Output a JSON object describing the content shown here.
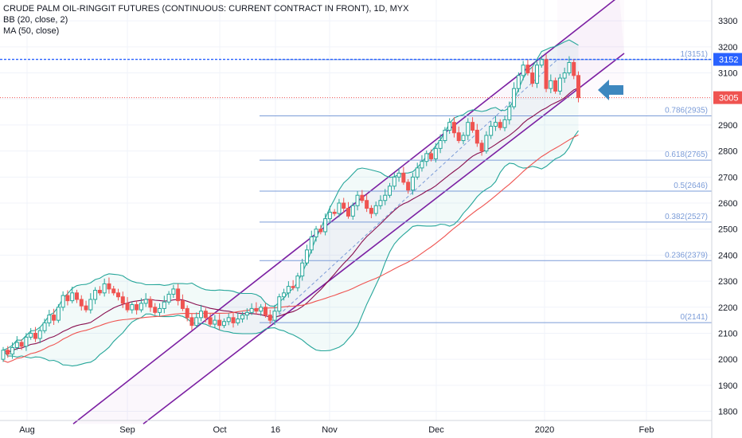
{
  "legend": {
    "title": "CRUDE PALM OIL-RINGGIT FUTURES (CONTINUOUS: CURRENT CONTRACT IN FRONT), 1D, MYX",
    "bb": "BB (20, close, 2)",
    "ma": "MA (50, close)"
  },
  "chart_data": {
    "type": "candlestick",
    "y_axis": {
      "ticks": [
        1800,
        1900,
        2000,
        2100,
        2200,
        2300,
        2400,
        2500,
        2600,
        2700,
        2800,
        2900,
        3000,
        3100,
        3200,
        3300
      ],
      "range": [
        1765,
        3380
      ],
      "position": "right"
    },
    "x_axis": {
      "labels": [
        "Aug",
        "Sep",
        "Oct",
        "16",
        "Nov",
        "Dec",
        "2020",
        "Feb"
      ]
    },
    "price_labels": [
      {
        "text": "3152",
        "value": 3152,
        "color": "#2962ff"
      },
      {
        "text": "3005",
        "value": 3005,
        "color": "#ef5350"
      }
    ],
    "fibonacci": [
      {
        "label": "1(3151)",
        "value": 3151
      },
      {
        "label": "0.786(2935)",
        "value": 2935
      },
      {
        "label": "0.618(2765)",
        "value": 2765
      },
      {
        "label": "0.5(2646)",
        "value": 2646
      },
      {
        "label": "0.382(2527)",
        "value": 2527
      },
      {
        "label": "0.236(2379)",
        "value": 2379
      },
      {
        "label": "0(2141)",
        "value": 2141
      }
    ],
    "colors": {
      "up": "#26a69a",
      "down": "#ef5350",
      "bb": "#26a69a",
      "ma": "#ef5350",
      "basis": "#880e4f",
      "channel": "#7b1fa2",
      "fib": "#7b9cd8",
      "arrow": "#3d87bf"
    },
    "candles": [
      [
        2000,
        2035
      ],
      [
        2035,
        2020
      ],
      [
        2020,
        2045
      ],
      [
        2045,
        2065
      ],
      [
        2065,
        2050
      ],
      [
        2050,
        2085
      ],
      [
        2085,
        2100
      ],
      [
        2100,
        2080
      ],
      [
        2080,
        2110
      ],
      [
        2110,
        2140
      ],
      [
        2140,
        2170
      ],
      [
        2170,
        2150
      ],
      [
        2150,
        2200
      ],
      [
        2200,
        2245
      ],
      [
        2245,
        2225
      ],
      [
        2225,
        2255
      ],
      [
        2255,
        2230
      ],
      [
        2230,
        2205
      ],
      [
        2205,
        2190
      ],
      [
        2190,
        2230
      ],
      [
        2230,
        2265
      ],
      [
        2265,
        2255
      ],
      [
        2255,
        2290
      ],
      [
        2290,
        2270
      ],
      [
        2270,
        2255
      ],
      [
        2255,
        2240
      ],
      [
        2240,
        2215
      ],
      [
        2215,
        2190
      ],
      [
        2190,
        2210
      ],
      [
        2210,
        2190
      ],
      [
        2190,
        2215
      ],
      [
        2215,
        2230
      ],
      [
        2230,
        2200
      ],
      [
        2200,
        2180
      ],
      [
        2180,
        2195
      ],
      [
        2195,
        2220
      ],
      [
        2220,
        2250
      ],
      [
        2250,
        2270
      ],
      [
        2270,
        2225
      ],
      [
        2225,
        2195
      ],
      [
        2195,
        2160
      ],
      [
        2160,
        2130
      ],
      [
        2130,
        2160
      ],
      [
        2160,
        2185
      ],
      [
        2185,
        2160
      ],
      [
        2160,
        2135
      ],
      [
        2135,
        2150
      ],
      [
        2150,
        2130
      ],
      [
        2130,
        2145
      ],
      [
        2145,
        2160
      ],
      [
        2160,
        2140
      ],
      [
        2140,
        2155
      ],
      [
        2155,
        2170
      ],
      [
        2170,
        2180
      ],
      [
        2180,
        2195
      ],
      [
        2195,
        2185
      ],
      [
        2185,
        2200
      ],
      [
        2200,
        2170
      ],
      [
        2170,
        2150
      ],
      [
        2150,
        2185
      ],
      [
        2185,
        2240
      ],
      [
        2240,
        2255
      ],
      [
        2255,
        2280
      ],
      [
        2280,
        2275
      ],
      [
        2275,
        2320
      ],
      [
        2320,
        2370
      ],
      [
        2370,
        2420
      ],
      [
        2420,
        2470
      ],
      [
        2470,
        2500
      ],
      [
        2500,
        2490
      ],
      [
        2490,
        2540
      ],
      [
        2540,
        2565
      ],
      [
        2565,
        2560
      ],
      [
        2560,
        2600
      ],
      [
        2600,
        2580
      ],
      [
        2580,
        2550
      ],
      [
        2550,
        2590
      ],
      [
        2590,
        2630
      ],
      [
        2630,
        2610
      ],
      [
        2610,
        2580
      ],
      [
        2580,
        2560
      ],
      [
        2560,
        2590
      ],
      [
        2590,
        2610
      ],
      [
        2610,
        2630
      ],
      [
        2630,
        2665
      ],
      [
        2665,
        2700
      ],
      [
        2700,
        2715
      ],
      [
        2715,
        2680
      ],
      [
        2680,
        2650
      ],
      [
        2650,
        2700
      ],
      [
        2700,
        2735
      ],
      [
        2735,
        2760
      ],
      [
        2760,
        2790
      ],
      [
        2790,
        2770
      ],
      [
        2770,
        2810
      ],
      [
        2810,
        2840
      ],
      [
        2840,
        2880
      ],
      [
        2880,
        2910
      ],
      [
        2910,
        2870
      ],
      [
        2870,
        2840
      ],
      [
        2840,
        2860
      ],
      [
        2860,
        2910
      ],
      [
        2910,
        2880
      ],
      [
        2880,
        2830
      ],
      [
        2830,
        2800
      ],
      [
        2800,
        2860
      ],
      [
        2860,
        2895
      ],
      [
        2895,
        2910
      ],
      [
        2910,
        2890
      ],
      [
        2890,
        2920
      ],
      [
        2920,
        2970
      ],
      [
        2970,
        3040
      ],
      [
        3040,
        3090
      ],
      [
        3090,
        3130
      ],
      [
        3130,
        3100
      ],
      [
        3100,
        3060
      ],
      [
        3060,
        3130
      ],
      [
        3130,
        3151
      ],
      [
        3151,
        3040
      ],
      [
        3040,
        3070
      ],
      [
        3070,
        3030
      ],
      [
        3030,
        3080
      ],
      [
        3080,
        3100
      ],
      [
        3100,
        3140
      ],
      [
        3140,
        3090
      ],
      [
        3090,
        3005
      ]
    ]
  }
}
